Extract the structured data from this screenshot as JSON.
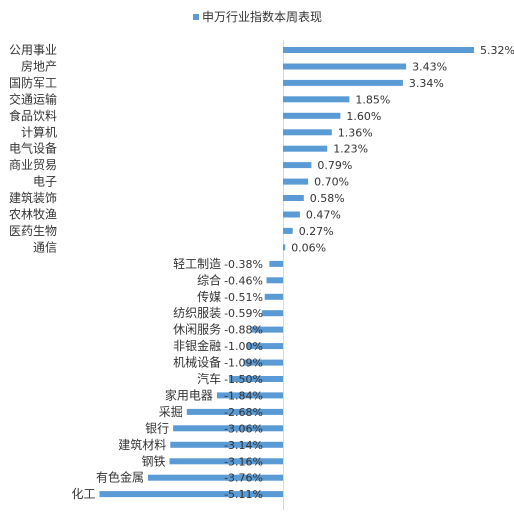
{
  "chart_data": {
    "type": "bar",
    "orientation": "horizontal",
    "legend": {
      "label": "申万行业指数本周表现",
      "placement": "top-center"
    },
    "series": [
      {
        "name": "申万行业指数本周表现",
        "color": "#5b9bd5",
        "values": [
          5.32,
          3.43,
          3.34,
          1.85,
          1.6,
          1.36,
          1.23,
          0.79,
          0.7,
          0.58,
          0.47,
          0.27,
          0.06,
          -0.38,
          -0.46,
          -0.51,
          -0.59,
          -0.88,
          -1.0,
          -1.09,
          -1.5,
          -1.84,
          -2.68,
          -3.06,
          -3.14,
          -3.16,
          -3.76,
          -5.11
        ]
      }
    ],
    "categories": [
      "公用事业",
      "房地产",
      "国防军工",
      "交通运输",
      "食品饮料",
      "计算机",
      "电气设备",
      "商业贸易",
      "电子",
      "建筑装饰",
      "农林牧渔",
      "医药生物",
      "通信",
      "轻工制造",
      "综合",
      "传媒",
      "纺织服装",
      "休闲服务",
      "非银金融",
      "机械设备",
      "汽车",
      "家用电器",
      "采掘",
      "银行",
      "建筑材料",
      "钢铁",
      "有色金属",
      "化工"
    ],
    "value_labels": [
      "5.32%",
      "3.43%",
      "3.34%",
      "1.85%",
      "1.60%",
      "1.36%",
      "1.23%",
      "0.79%",
      "0.70%",
      "0.58%",
      "0.47%",
      "0.27%",
      "0.06%",
      "-0.38%",
      "-0.46%",
      "-0.51%",
      "-0.59%",
      "-0.88%",
      "-1.00%",
      "-1.09%",
      "-1.50%",
      "-1.84%",
      "-2.68%",
      "-3.06%",
      "-3.14%",
      "-3.16%",
      "-3.76%",
      "-5.11%"
    ],
    "grid": false,
    "axis_line_color": "#d9d9d9"
  }
}
